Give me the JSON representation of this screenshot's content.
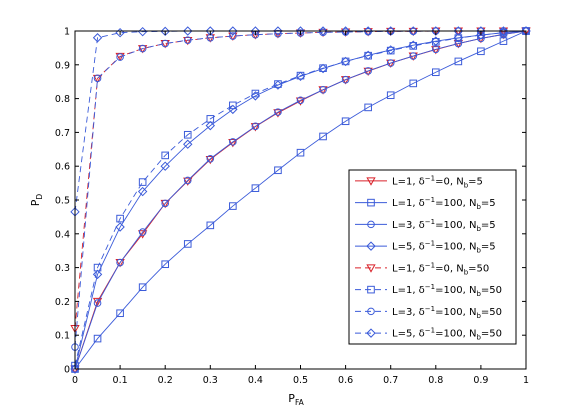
{
  "chart_data": {
    "type": "line",
    "title": "",
    "xlabel": "P",
    "xlabel_sub": "FA",
    "ylabel": "P",
    "ylabel_sub": "D",
    "xlim": [
      0,
      1
    ],
    "ylim": [
      0,
      1
    ],
    "xticks": [
      "0",
      "0.1",
      "0.2",
      "0.3",
      "0.4",
      "0.5",
      "0.6",
      "0.7",
      "0.8",
      "0.9",
      "1"
    ],
    "yticks": [
      "0",
      "0.1",
      "0.2",
      "0.3",
      "0.4",
      "0.5",
      "0.6",
      "0.7",
      "0.8",
      "0.9",
      "1"
    ],
    "grid": false,
    "legend_position": "right",
    "colors": {
      "red": "#d9222a",
      "blue": "#3b5bd9"
    },
    "series": [
      {
        "legend": {
          "main": "L=1, δ",
          "sup": "−1",
          "mid": "=0, N",
          "sub": "b",
          "tail": "=5"
        },
        "color": "red",
        "dash": "solid",
        "marker": "triangle-down",
        "points": [
          [
            0,
            0
          ],
          [
            0.05,
            0.2
          ],
          [
            0.1,
            0.315
          ],
          [
            0.15,
            0.4
          ],
          [
            0.2,
            0.49
          ],
          [
            0.25,
            0.556
          ],
          [
            0.3,
            0.62
          ],
          [
            0.35,
            0.67
          ],
          [
            0.4,
            0.717
          ],
          [
            0.45,
            0.758
          ],
          [
            0.5,
            0.793
          ],
          [
            0.55,
            0.826
          ],
          [
            0.6,
            0.856
          ],
          [
            0.65,
            0.881
          ],
          [
            0.7,
            0.905
          ],
          [
            0.75,
            0.926
          ],
          [
            0.8,
            0.945
          ],
          [
            0.85,
            0.963
          ],
          [
            0.9,
            0.978
          ],
          [
            0.95,
            0.99
          ],
          [
            1,
            1
          ]
        ]
      },
      {
        "legend": {
          "main": "L=1, δ",
          "sup": "−1",
          "mid": "=100, N",
          "sub": "b",
          "tail": "=5"
        },
        "color": "blue",
        "dash": "solid",
        "marker": "square",
        "points": [
          [
            0,
            0
          ],
          [
            0.05,
            0.09
          ],
          [
            0.1,
            0.165
          ],
          [
            0.15,
            0.242
          ],
          [
            0.2,
            0.31
          ],
          [
            0.25,
            0.37
          ],
          [
            0.3,
            0.425
          ],
          [
            0.35,
            0.482
          ],
          [
            0.4,
            0.535
          ],
          [
            0.45,
            0.588
          ],
          [
            0.5,
            0.64
          ],
          [
            0.55,
            0.688
          ],
          [
            0.6,
            0.733
          ],
          [
            0.65,
            0.774
          ],
          [
            0.7,
            0.81
          ],
          [
            0.75,
            0.845
          ],
          [
            0.8,
            0.878
          ],
          [
            0.85,
            0.91
          ],
          [
            0.9,
            0.94
          ],
          [
            0.95,
            0.97
          ],
          [
            1,
            1
          ]
        ]
      },
      {
        "legend": {
          "main": "L=3, δ",
          "sup": "−1",
          "mid": "=100, N",
          "sub": "b",
          "tail": "=5"
        },
        "color": "blue",
        "dash": "solid",
        "marker": "circle",
        "points": [
          [
            0,
            0
          ],
          [
            0.05,
            0.195
          ],
          [
            0.1,
            0.315
          ],
          [
            0.15,
            0.405
          ],
          [
            0.2,
            0.49
          ],
          [
            0.25,
            0.558
          ],
          [
            0.3,
            0.622
          ],
          [
            0.35,
            0.672
          ],
          [
            0.4,
            0.718
          ],
          [
            0.45,
            0.76
          ],
          [
            0.5,
            0.795
          ],
          [
            0.55,
            0.826
          ],
          [
            0.6,
            0.856
          ],
          [
            0.65,
            0.882
          ],
          [
            0.7,
            0.905
          ],
          [
            0.75,
            0.926
          ],
          [
            0.8,
            0.946
          ],
          [
            0.85,
            0.963
          ],
          [
            0.9,
            0.978
          ],
          [
            0.95,
            0.99
          ],
          [
            1,
            1
          ]
        ]
      },
      {
        "legend": {
          "main": "L=5, δ",
          "sup": "−1",
          "mid": "=100, N",
          "sub": "b",
          "tail": "=5"
        },
        "color": "blue",
        "dash": "solid",
        "marker": "diamond",
        "points": [
          [
            0,
            0
          ],
          [
            0.05,
            0.28
          ],
          [
            0.1,
            0.42
          ],
          [
            0.15,
            0.525
          ],
          [
            0.2,
            0.6
          ],
          [
            0.25,
            0.665
          ],
          [
            0.3,
            0.72
          ],
          [
            0.35,
            0.768
          ],
          [
            0.4,
            0.808
          ],
          [
            0.45,
            0.84
          ],
          [
            0.5,
            0.866
          ],
          [
            0.55,
            0.889
          ],
          [
            0.6,
            0.91
          ],
          [
            0.65,
            0.928
          ],
          [
            0.7,
            0.944
          ],
          [
            0.75,
            0.958
          ],
          [
            0.8,
            0.97
          ],
          [
            0.85,
            0.98
          ],
          [
            0.9,
            0.988
          ],
          [
            0.95,
            0.995
          ],
          [
            1,
            1
          ]
        ]
      },
      {
        "legend": {
          "main": "L=1, δ",
          "sup": "−1",
          "mid": "=0, N",
          "sub": "b",
          "tail": "=50"
        },
        "color": "red",
        "dash": "dashed",
        "marker": "triangle-down",
        "points": [
          [
            0,
            0.12
          ],
          [
            0.05,
            0.86
          ],
          [
            0.1,
            0.925
          ],
          [
            0.15,
            0.948
          ],
          [
            0.2,
            0.963
          ],
          [
            0.25,
            0.972
          ],
          [
            0.3,
            0.98
          ],
          [
            0.35,
            0.985
          ],
          [
            0.4,
            0.989
          ],
          [
            0.45,
            0.992
          ],
          [
            0.5,
            0.994
          ],
          [
            0.55,
            0.996
          ],
          [
            0.6,
            0.997
          ],
          [
            0.65,
            0.998
          ],
          [
            0.7,
            0.999
          ],
          [
            0.75,
            0.999
          ],
          [
            0.8,
            1
          ],
          [
            0.85,
            1
          ],
          [
            0.9,
            1
          ],
          [
            0.95,
            1
          ],
          [
            1,
            1
          ]
        ]
      },
      {
        "legend": {
          "main": "L=1, δ",
          "sup": "−1",
          "mid": "=100, N",
          "sub": "b",
          "tail": "=50"
        },
        "color": "blue",
        "dash": "dashed",
        "marker": "square",
        "points": [
          [
            0,
            0.01
          ],
          [
            0.05,
            0.3
          ],
          [
            0.1,
            0.445
          ],
          [
            0.15,
            0.553
          ],
          [
            0.2,
            0.632
          ],
          [
            0.25,
            0.693
          ],
          [
            0.3,
            0.74
          ],
          [
            0.35,
            0.78
          ],
          [
            0.4,
            0.815
          ],
          [
            0.45,
            0.843
          ],
          [
            0.5,
            0.868
          ],
          [
            0.55,
            0.89
          ],
          [
            0.6,
            0.91
          ],
          [
            0.65,
            0.927
          ],
          [
            0.7,
            0.942
          ],
          [
            0.75,
            0.956
          ],
          [
            0.8,
            0.968
          ],
          [
            0.85,
            0.979
          ],
          [
            0.9,
            0.988
          ],
          [
            0.95,
            0.995
          ],
          [
            1,
            1
          ]
        ]
      },
      {
        "legend": {
          "main": "L=3, δ",
          "sup": "−1",
          "mid": "=100, N",
          "sub": "b",
          "tail": "=50"
        },
        "color": "blue",
        "dash": "dashed",
        "marker": "circle",
        "points": [
          [
            0,
            0.065
          ],
          [
            0.05,
            0.86
          ],
          [
            0.1,
            0.923
          ],
          [
            0.15,
            0.948
          ],
          [
            0.2,
            0.963
          ],
          [
            0.25,
            0.973
          ],
          [
            0.3,
            0.98
          ],
          [
            0.35,
            0.985
          ],
          [
            0.4,
            0.989
          ],
          [
            0.45,
            0.992
          ],
          [
            0.5,
            0.994
          ],
          [
            0.55,
            0.996
          ],
          [
            0.6,
            0.997
          ],
          [
            0.65,
            0.998
          ],
          [
            0.7,
            0.999
          ],
          [
            0.75,
            0.999
          ],
          [
            0.8,
            1
          ],
          [
            0.85,
            1
          ],
          [
            0.9,
            1
          ],
          [
            0.95,
            1
          ],
          [
            1,
            1
          ]
        ]
      },
      {
        "legend": {
          "main": "L=5, δ",
          "sup": "−1",
          "mid": "=100, N",
          "sub": "b",
          "tail": "=50"
        },
        "color": "blue",
        "dash": "dashed",
        "marker": "diamond",
        "points": [
          [
            0,
            0.465
          ],
          [
            0.05,
            0.98
          ],
          [
            0.1,
            0.995
          ],
          [
            0.15,
            0.998
          ],
          [
            0.2,
            0.999
          ],
          [
            0.25,
            1
          ],
          [
            0.3,
            1
          ],
          [
            0.35,
            1
          ],
          [
            0.4,
            1
          ],
          [
            0.45,
            1
          ],
          [
            0.5,
            1
          ],
          [
            0.55,
            1
          ],
          [
            0.6,
            1
          ],
          [
            0.65,
            1
          ],
          [
            0.7,
            1
          ],
          [
            0.75,
            1
          ],
          [
            0.8,
            1
          ],
          [
            0.85,
            1
          ],
          [
            0.9,
            1
          ],
          [
            0.95,
            1
          ],
          [
            1,
            1
          ]
        ]
      }
    ]
  }
}
